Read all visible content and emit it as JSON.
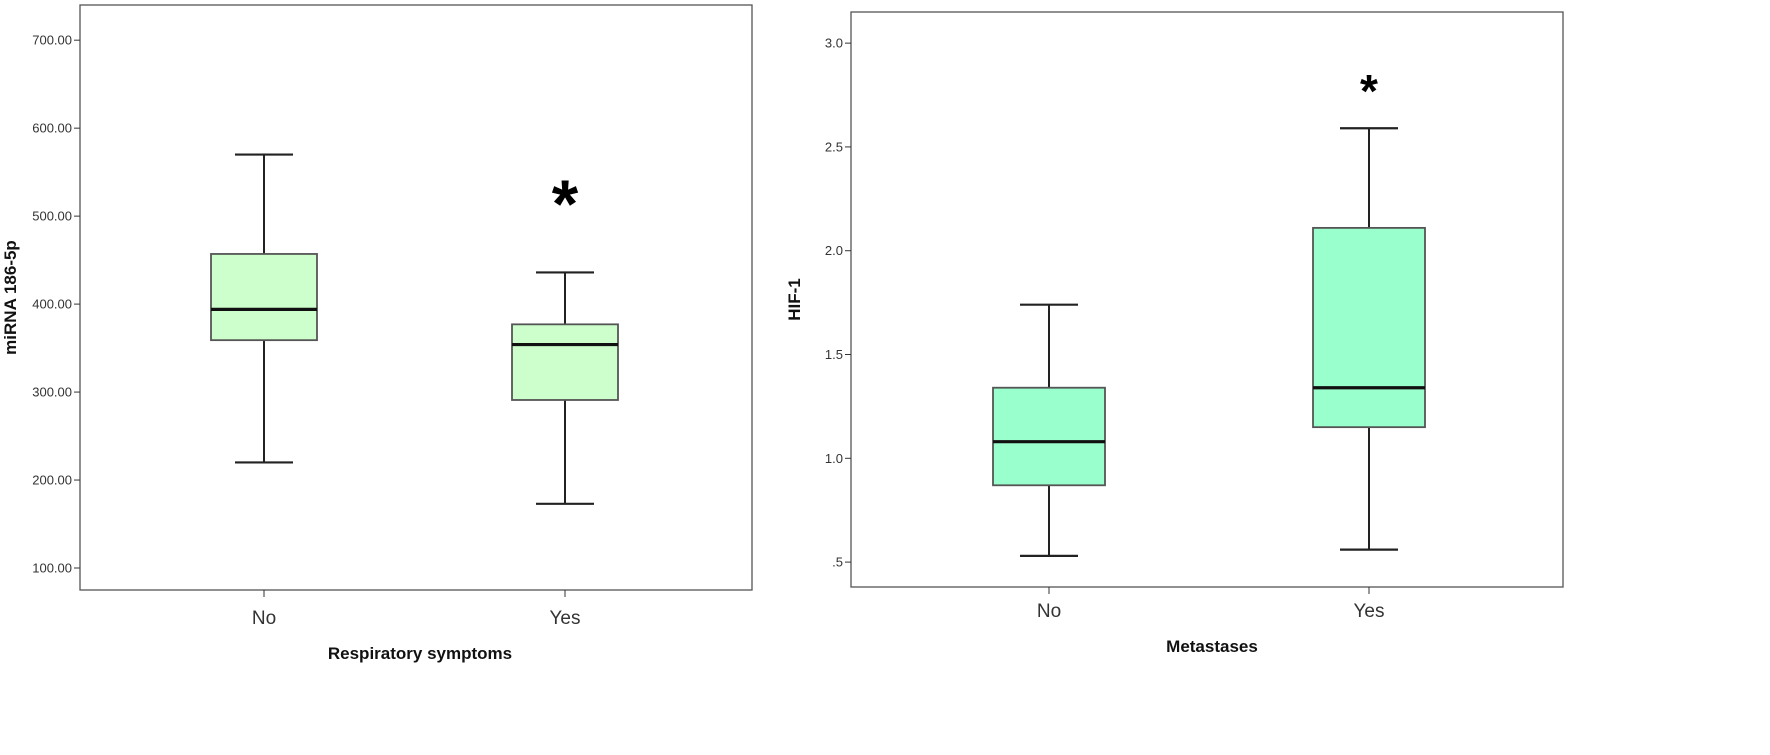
{
  "chart_data": [
    {
      "type": "box",
      "title": "",
      "xlabel": "Respiratory symptoms",
      "ylabel": "miRNA 186-5p",
      "ylim": [
        75,
        740
      ],
      "yticks": [
        100,
        200,
        300,
        400,
        500,
        600,
        700
      ],
      "ytick_labels": [
        "100.00",
        "200.00",
        "300.00",
        "400.00",
        "500.00",
        "600.00",
        "700.00"
      ],
      "categories": [
        "No",
        "Yes"
      ],
      "box_color": "#ccffcc",
      "grid": false,
      "boxes": [
        {
          "category": "No",
          "min": 220,
          "q1": 359,
          "median": 394,
          "q3": 457,
          "max": 570
        },
        {
          "category": "Yes",
          "min": 173,
          "q1": 291,
          "median": 354,
          "q3": 377,
          "max": 436
        }
      ],
      "annotations": [
        {
          "category": "Yes",
          "text": "*",
          "y": 515
        }
      ]
    },
    {
      "type": "box",
      "title": "",
      "xlabel": "Metastases",
      "ylabel": "HIF-1",
      "ylim": [
        0.38,
        3.15
      ],
      "yticks": [
        0.5,
        1.0,
        1.5,
        2.0,
        2.5,
        3.0
      ],
      "ytick_labels": [
        ".5",
        "1.0",
        "1.5",
        "2.0",
        "2.5",
        "3.0"
      ],
      "categories": [
        "No",
        "Yes"
      ],
      "box_color": "#99ffcc",
      "grid": false,
      "boxes": [
        {
          "category": "No",
          "min": 0.53,
          "q1": 0.87,
          "median": 1.08,
          "q3": 1.34,
          "max": 1.74
        },
        {
          "category": "Yes",
          "min": 0.56,
          "q1": 1.15,
          "median": 1.34,
          "q3": 2.11,
          "max": 2.59
        }
      ],
      "annotations": [
        {
          "category": "Yes",
          "text": "*",
          "y": 2.77
        }
      ]
    }
  ]
}
